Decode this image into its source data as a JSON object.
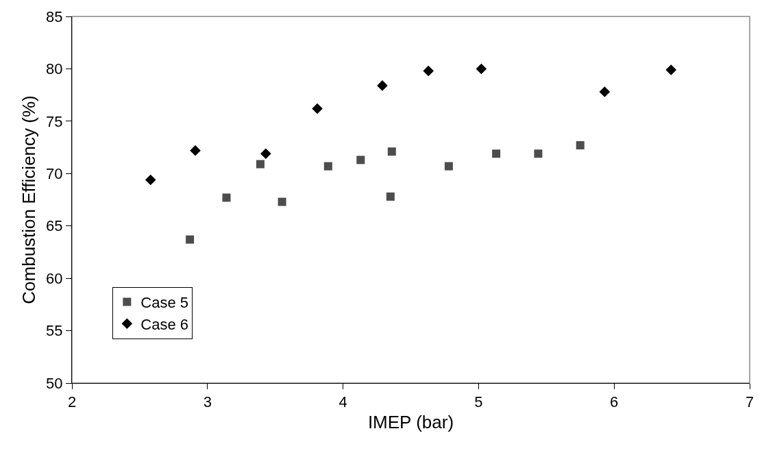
{
  "chart_data": {
    "type": "scatter",
    "xlabel": "IMEP (bar)",
    "ylabel": "Combustion Efficiency (%)",
    "xlim": [
      2,
      7
    ],
    "xticks": [
      2,
      3,
      4,
      5,
      6,
      7
    ],
    "ylim": [
      50,
      85
    ],
    "yticks": [
      50,
      55,
      60,
      65,
      70,
      75,
      80,
      85
    ],
    "grid": false,
    "legend": "bottom left",
    "series": [
      {
        "name": "Case 5",
        "color": "#4d4d4d",
        "marker": "square",
        "x": [
          2.87,
          3.14,
          3.39,
          3.55,
          3.89,
          4.13,
          4.36,
          4.35,
          4.78,
          5.13,
          5.44,
          5.75
        ],
        "values": [
          63.7,
          67.7,
          70.9,
          67.3,
          70.7,
          71.3,
          72.1,
          67.8,
          70.7,
          71.9,
          71.9,
          72.7
        ]
      },
      {
        "name": "Case 6",
        "color": "#000000",
        "marker": "diamond",
        "x": [
          2.58,
          2.91,
          3.43,
          3.81,
          4.29,
          4.63,
          5.02,
          5.93,
          6.42
        ],
        "values": [
          69.4,
          72.2,
          71.9,
          76.2,
          78.4,
          79.8,
          80.0,
          77.8,
          79.9
        ]
      }
    ]
  }
}
